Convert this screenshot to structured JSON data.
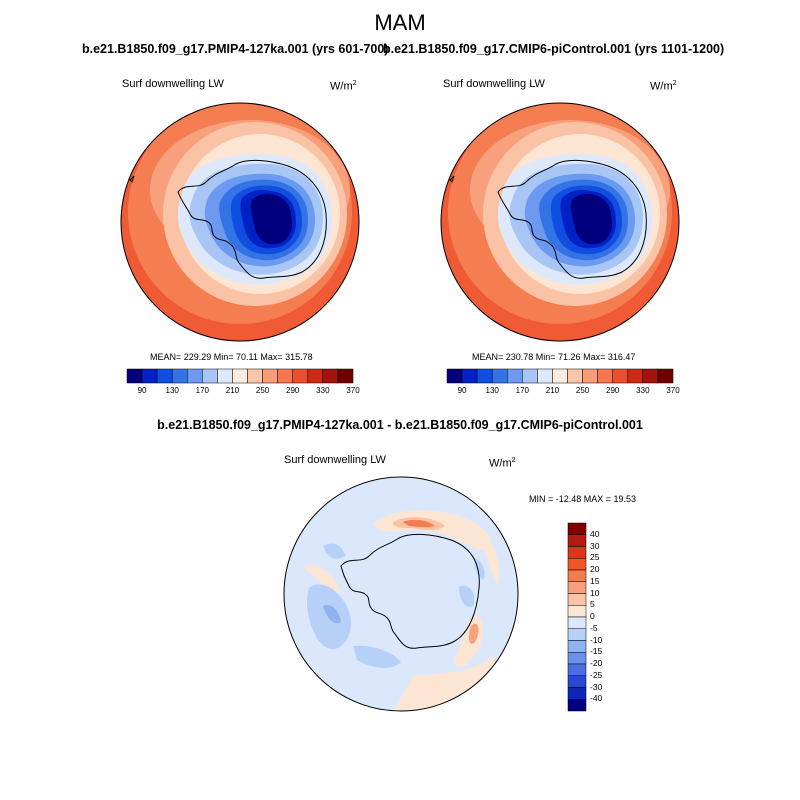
{
  "figure": {
    "title": "MAM",
    "left_run": "b.e21.B1850.f09_g17.PMIP4-127ka.001 (yrs 601-700)",
    "right_run": "b.e21.B1850.f09_g17.CMIP6-piControl.001 (yrs 1101-1200)",
    "diff_title": "b.e21.B1850.f09_g17.PMIP4-127ka.001 - b.e21.B1850.f09_g17.CMIP6-piControl.001"
  },
  "panels": {
    "left": {
      "variable": "Surf downwelling LW",
      "units": "W/m",
      "units_sup": "2",
      "stats": "MEAN= 229.29  Min=  70.11  Max= 315.78"
    },
    "right": {
      "variable": "Surf downwelling LW",
      "units": "W/m",
      "units_sup": "2",
      "stats": "MEAN= 230.78  Min=  71.26  Max= 316.47"
    },
    "diff": {
      "variable": "Surf downwelling LW",
      "units": "W/m",
      "units_sup": "2",
      "stats": "MIN = -12.48 MAX =  19.53"
    }
  },
  "colorbars": {
    "abs": {
      "colors": [
        "#00007f",
        "#0021c5",
        "#0f4ee0",
        "#3473e6",
        "#6b9af0",
        "#a8c6f5",
        "#dde9fb",
        "#fdecdf",
        "#fbc7a9",
        "#f89d78",
        "#f4774f",
        "#ea5030",
        "#cc2a17",
        "#a3140c",
        "#6e0000"
      ],
      "labels": [
        "90",
        "130",
        "170",
        "210",
        "250",
        "290",
        "330",
        "370"
      ]
    },
    "diff": {
      "colors": [
        "#7f0000",
        "#b51a0d",
        "#d9361c",
        "#f05529",
        "#f57c4f",
        "#f8a07c",
        "#fbc3a5",
        "#fde5d3",
        "#dbe8fc",
        "#b7d0f8",
        "#8fb3f2",
        "#6a92ea",
        "#4a6fe0",
        "#2549cf",
        "#0c25b5",
        "#00007f"
      ],
      "labels": [
        "40",
        "30",
        "25",
        "20",
        "15",
        "10",
        "5",
        "0",
        "-5",
        "-10",
        "-15",
        "-20",
        "-25",
        "-30",
        "-40"
      ]
    }
  }
}
